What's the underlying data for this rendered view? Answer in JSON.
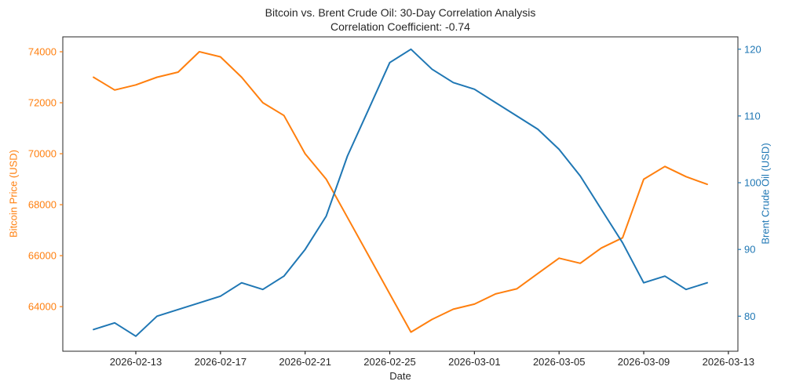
{
  "title": {
    "line1": "Bitcoin vs. Brent Crude Oil: 30-Day Correlation Analysis",
    "line2": "Correlation Coefficient: -0.74"
  },
  "axes": {
    "x": {
      "label": "Date",
      "tick_labels": [
        "2026-02-13",
        "2026-02-17",
        "2026-02-21",
        "2026-02-25",
        "2026-03-01",
        "2026-03-05",
        "2026-03-09",
        "2026-03-13"
      ],
      "tick_day_indices": [
        2,
        6,
        10,
        14,
        18,
        22,
        26,
        30
      ]
    },
    "y_left": {
      "label": "Bitcoin Price (USD)",
      "color": "#ff7f0e",
      "ticks": [
        64000,
        66000,
        68000,
        70000,
        72000,
        74000
      ],
      "min": 62250,
      "max": 74585
    },
    "y_right": {
      "label": "Brent Crude Oil (USD)",
      "color": "#1f77b4",
      "ticks": [
        80,
        90,
        100,
        110,
        120
      ],
      "min": 74.75,
      "max": 121.85
    }
  },
  "chart_data": {
    "type": "line",
    "title": "Bitcoin vs. Brent Crude Oil: 30-Day Correlation Analysis",
    "subtitle": "Correlation Coefficient: -0.74",
    "correlation_coefficient": -0.74,
    "xlabel": "Date",
    "grid": false,
    "legend": "none",
    "x": [
      "2026-02-11",
      "2026-02-12",
      "2026-02-13",
      "2026-02-14",
      "2026-02-15",
      "2026-02-16",
      "2026-02-17",
      "2026-02-18",
      "2026-02-19",
      "2026-02-20",
      "2026-02-21",
      "2026-02-22",
      "2026-02-23",
      "2026-02-24",
      "2026-02-25",
      "2026-02-26",
      "2026-02-27",
      "2026-02-28",
      "2026-03-01",
      "2026-03-02",
      "2026-03-03",
      "2026-03-04",
      "2026-03-05",
      "2026-03-06",
      "2026-03-07",
      "2026-03-08",
      "2026-03-09",
      "2026-03-10",
      "2026-03-11",
      "2026-03-12"
    ],
    "series": [
      {
        "name": "Bitcoin Price (USD)",
        "axis": "left",
        "color": "#ff7f0e",
        "values": [
          73000,
          72500,
          72700,
          73000,
          73200,
          74000,
          73800,
          73000,
          72000,
          71500,
          70000,
          69000,
          67500,
          66000,
          64500,
          63000,
          63500,
          63900,
          64100,
          64500,
          64700,
          65300,
          65900,
          65700,
          66300,
          66700,
          69000,
          69500,
          69100,
          68800
        ]
      },
      {
        "name": "Brent Crude Oil (USD)",
        "axis": "right",
        "color": "#1f77b4",
        "values": [
          78,
          79,
          77,
          80,
          81,
          82,
          83,
          85,
          84,
          86,
          90,
          95,
          104,
          111,
          118,
          120,
          117,
          115,
          114,
          112,
          110,
          108,
          105,
          101,
          96,
          91,
          85,
          86,
          84,
          85
        ]
      }
    ]
  },
  "colors": {
    "spine": "#262626",
    "tick_text": "#262626"
  }
}
